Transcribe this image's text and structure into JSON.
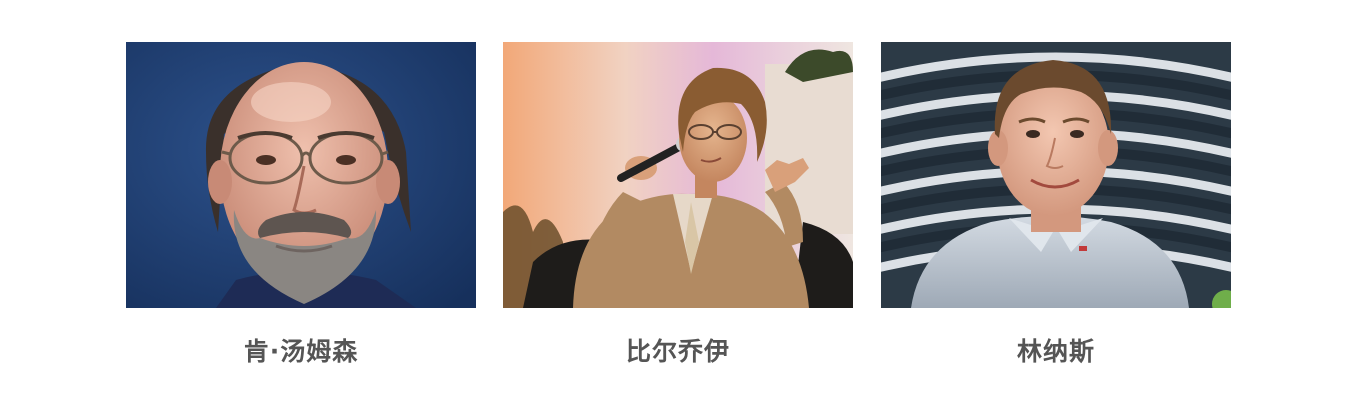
{
  "people": [
    {
      "name": "肯·汤姆森",
      "colors": {
        "background": "#1f3f73",
        "skin": "#d9a18d",
        "hair": "#3a302b",
        "beard": "#8a8682",
        "shirt": "#1e2b55"
      }
    },
    {
      "name": "比尔乔伊",
      "colors": {
        "background": "#e9c6b8",
        "skin": "#d9a07a",
        "hair": "#8a5c32",
        "suit": "#b28a62",
        "chair": "#1e1c1a"
      }
    },
    {
      "name": "林纳斯",
      "colors": {
        "background": "#2c3a46",
        "skin": "#e3b29a",
        "hair": "#6b4a2e",
        "shirt": "#b9c3cf"
      }
    }
  ]
}
